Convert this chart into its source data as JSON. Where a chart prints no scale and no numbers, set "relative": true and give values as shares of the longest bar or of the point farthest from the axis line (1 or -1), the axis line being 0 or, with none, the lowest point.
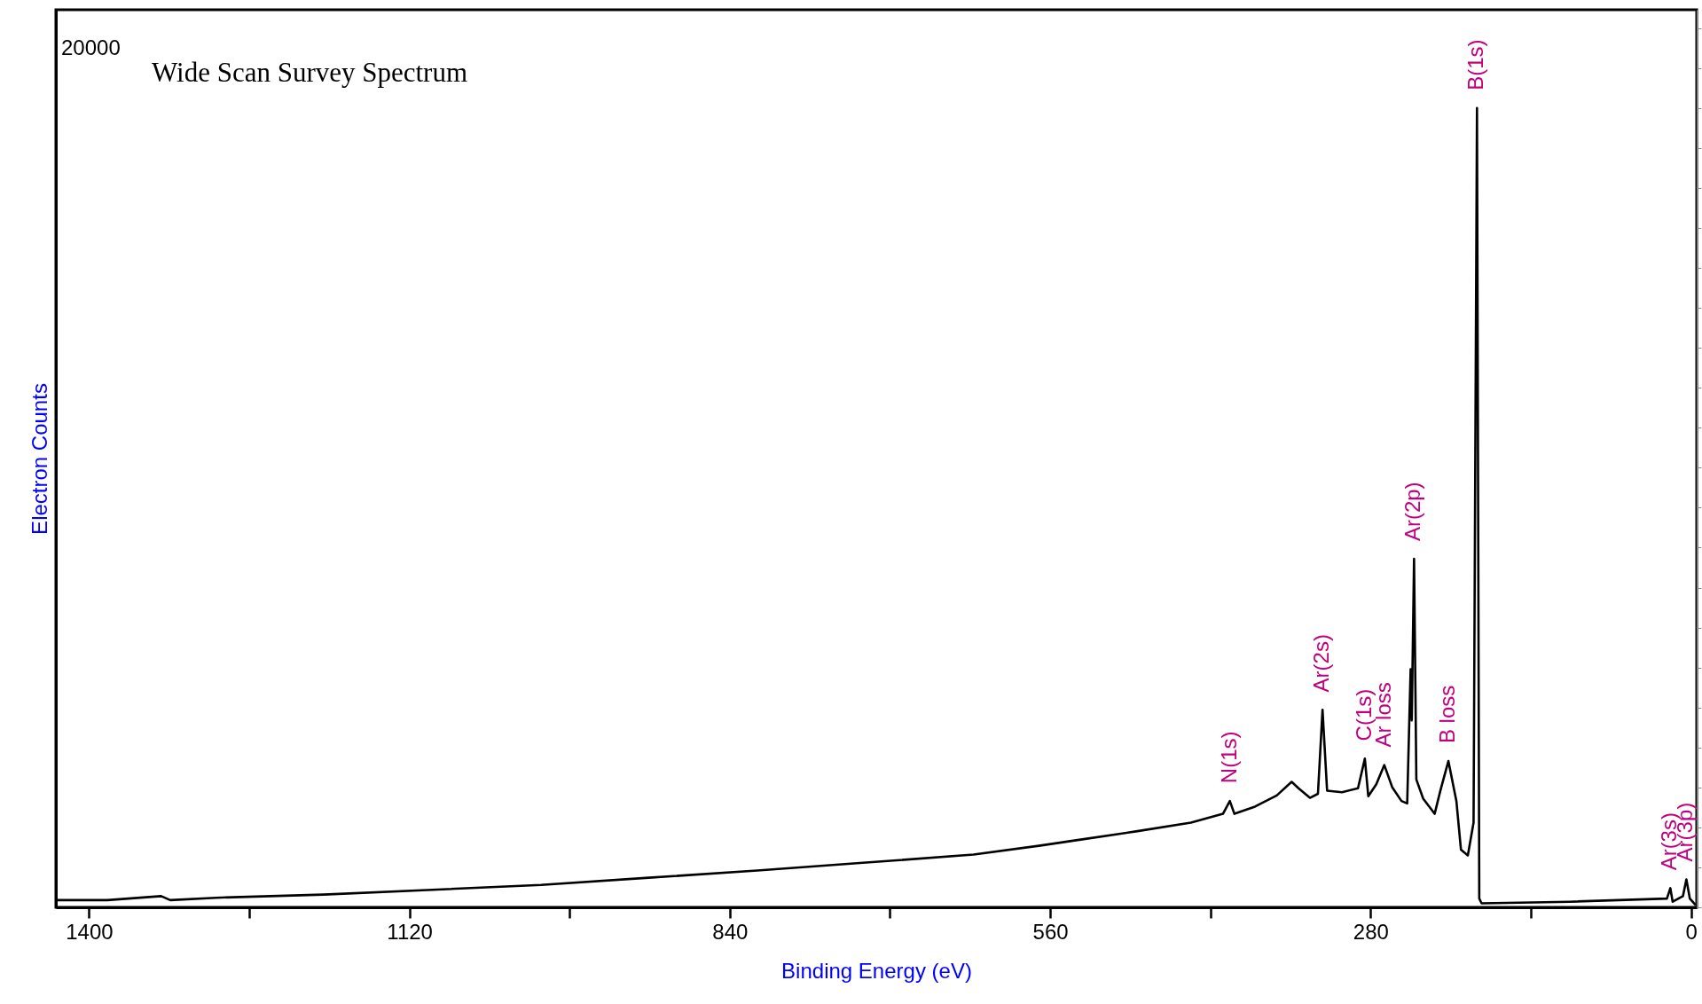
{
  "chart_data": {
    "type": "line",
    "title": "Wide Scan Survey Spectrum",
    "xlabel": "Binding Energy (eV)",
    "ylabel": "Electron Counts",
    "relative": true,
    "x": [
      1429,
      1384,
      1337,
      1329,
      1289,
      1195,
      1100,
      1005,
      911,
      816,
      721,
      627,
      570,
      532,
      485,
      437,
      409,
      403,
      399,
      381,
      362,
      349,
      343,
      333,
      326,
      322,
      318,
      305,
      291,
      285,
      282,
      275,
      268,
      261,
      253,
      248,
      245,
      244,
      242,
      240,
      234,
      224,
      219,
      212,
      205,
      201,
      195,
      190,
      187,
      185,
      183,
      106,
      21,
      18,
      16,
      7,
      4,
      1,
      -4
    ],
    "series": [
      {
        "color": "#000000",
        "values": [
          0.009,
          0.009,
          0.014,
          0.009,
          0.012,
          0.016,
          0.022,
          0.028,
          0.037,
          0.046,
          0.056,
          0.066,
          0.077,
          0.085,
          0.095,
          0.106,
          0.117,
          0.133,
          0.117,
          0.126,
          0.14,
          0.157,
          0.149,
          0.137,
          0.142,
          0.247,
          0.146,
          0.144,
          0.149,
          0.186,
          0.139,
          0.154,
          0.178,
          0.15,
          0.133,
          0.13,
          0.298,
          0.234,
          0.436,
          0.16,
          0.136,
          0.117,
          0.146,
          0.183,
          0.133,
          0.072,
          0.065,
          0.106,
          1,
          0.011,
          0.005,
          0.007,
          0.011,
          0.024,
          0.007,
          0.014,
          0.035,
          0.011,
          0.003
        ]
      }
    ],
    "xlim": [
      1429,
      -5
    ],
    "xticks": [
      1400,
      {
        "value": 1260,
        "label": null
      },
      1120,
      {
        "value": 980,
        "label": null
      },
      840,
      {
        "value": 700,
        "label": null
      },
      560,
      {
        "value": 420,
        "label": null
      },
      280,
      {
        "value": 140,
        "label": null
      },
      0
    ],
    "grid": false,
    "marker": "none",
    "line_style": "solid",
    "annotations": [
      "20000",
      {
        "text": "N(1s)",
        "x": 403,
        "y": 0.133
      },
      {
        "text": "Ar(2s)",
        "x": 322,
        "y": 0.247
      },
      {
        "text": "C(1s)",
        "x": 285,
        "y": 0.186
      },
      {
        "text": "Ar loss",
        "x": 268,
        "y": 0.178
      },
      {
        "text": "Ar(2p)",
        "x": 242,
        "y": 0.436
      },
      {
        "text": "B loss",
        "x": 212,
        "y": 0.183
      },
      {
        "text": "B(1s)",
        "x": 187,
        "y": 1
      },
      {
        "text": "Ar(3s)",
        "x": 18,
        "y": 0.024
      },
      {
        "text": "Ar(3p)",
        "x": 4,
        "y": 0.035
      }
    ]
  }
}
